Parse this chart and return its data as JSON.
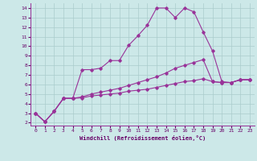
{
  "xlabel": "Windchill (Refroidissement éolien,°C)",
  "background_color": "#cce8e8",
  "grid_color": "#aacccc",
  "line_color": "#993399",
  "xlim": [
    -0.5,
    23.5
  ],
  "ylim": [
    1.7,
    14.5
  ],
  "xticks": [
    0,
    1,
    2,
    3,
    4,
    5,
    6,
    7,
    8,
    9,
    10,
    11,
    12,
    13,
    14,
    15,
    16,
    17,
    18,
    19,
    20,
    21,
    22,
    23
  ],
  "yticks": [
    2,
    3,
    4,
    5,
    6,
    7,
    8,
    9,
    10,
    11,
    12,
    13,
    14
  ],
  "line1_x": [
    0,
    1,
    2,
    3,
    4,
    5,
    6,
    7,
    8,
    9,
    10,
    11,
    12,
    13,
    14,
    15,
    16,
    17,
    18,
    19,
    20,
    21,
    22,
    23
  ],
  "line1_y": [
    3.0,
    2.1,
    3.2,
    4.55,
    4.55,
    7.55,
    7.55,
    7.7,
    8.5,
    8.5,
    10.1,
    11.1,
    12.2,
    14.0,
    14.0,
    13.0,
    14.0,
    13.6,
    11.5,
    9.5,
    6.3,
    6.2,
    6.5,
    6.5
  ],
  "line2_x": [
    0,
    1,
    2,
    3,
    4,
    5,
    6,
    7,
    8,
    9,
    10,
    11,
    12,
    13,
    14,
    15,
    16,
    17,
    18,
    19,
    20,
    21,
    22,
    23
  ],
  "line2_y": [
    3.0,
    2.1,
    3.2,
    4.55,
    4.55,
    4.7,
    5.0,
    5.2,
    5.4,
    5.6,
    5.9,
    6.2,
    6.5,
    6.8,
    7.2,
    7.7,
    8.0,
    8.3,
    8.6,
    6.3,
    6.2,
    6.2,
    6.5,
    6.5
  ],
  "line3_x": [
    0,
    1,
    2,
    3,
    4,
    5,
    6,
    7,
    8,
    9,
    10,
    11,
    12,
    13,
    14,
    15,
    16,
    17,
    18,
    19,
    20,
    21,
    22,
    23
  ],
  "line3_y": [
    3.0,
    2.1,
    3.2,
    4.55,
    4.55,
    4.6,
    4.8,
    4.9,
    5.0,
    5.1,
    5.3,
    5.4,
    5.5,
    5.7,
    5.9,
    6.1,
    6.3,
    6.4,
    6.6,
    6.3,
    6.2,
    6.2,
    6.5,
    6.5
  ]
}
